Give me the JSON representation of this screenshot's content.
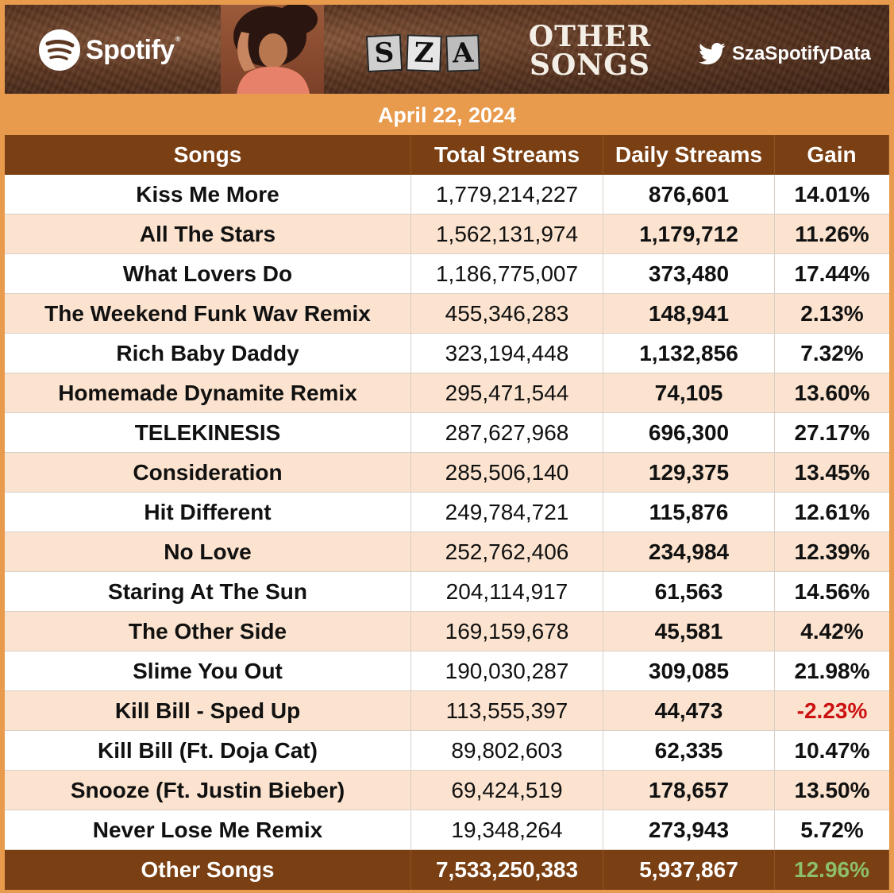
{
  "banner": {
    "spotify_label": "Spotify",
    "artist_logo": [
      "S",
      "Z",
      "A"
    ],
    "title_line1": "OTHER",
    "title_line2": "SONGS",
    "twitter_handle": "SzaSpotifyData"
  },
  "date": "April 22, 2024",
  "columns": [
    "Songs",
    "Total Streams",
    "Daily Streams",
    "Gain"
  ],
  "rows": [
    {
      "song": "Kiss Me More",
      "total": "1,779,214,227",
      "daily": "876,601",
      "gain": "14.01%"
    },
    {
      "song": "All The Stars",
      "total": "1,562,131,974",
      "daily": "1,179,712",
      "gain": "11.26%"
    },
    {
      "song": "What Lovers Do",
      "total": "1,186,775,007",
      "daily": "373,480",
      "gain": "17.44%"
    },
    {
      "song": "The Weekend Funk Wav Remix",
      "total": "455,346,283",
      "daily": "148,941",
      "gain": "2.13%"
    },
    {
      "song": "Rich Baby Daddy",
      "total": "323,194,448",
      "daily": "1,132,856",
      "gain": "7.32%"
    },
    {
      "song": "Homemade Dynamite Remix",
      "total": "295,471,544",
      "daily": "74,105",
      "gain": "13.60%"
    },
    {
      "song": "TELEKINESIS",
      "total": "287,627,968",
      "daily": "696,300",
      "gain": "27.17%"
    },
    {
      "song": "Consideration",
      "total": "285,506,140",
      "daily": "129,375",
      "gain": "13.45%"
    },
    {
      "song": "Hit Different",
      "total": "249,784,721",
      "daily": "115,876",
      "gain": "12.61%"
    },
    {
      "song": "No Love",
      "total": "252,762,406",
      "daily": "234,984",
      "gain": "12.39%"
    },
    {
      "song": "Staring At The Sun",
      "total": "204,114,917",
      "daily": "61,563",
      "gain": "14.56%"
    },
    {
      "song": "The Other Side",
      "total": "169,159,678",
      "daily": "45,581",
      "gain": "4.42%"
    },
    {
      "song": "Slime You Out",
      "total": "190,030,287",
      "daily": "309,085",
      "gain": "21.98%"
    },
    {
      "song": "Kill Bill - Sped Up",
      "total": "113,555,397",
      "daily": "44,473",
      "gain": "-2.23%"
    },
    {
      "song": "Kill Bill (Ft. Doja Cat)",
      "total": "89,802,603",
      "daily": "62,335",
      "gain": "10.47%"
    },
    {
      "song": "Snooze (Ft. Justin Bieber)",
      "total": "69,424,519",
      "daily": "178,657",
      "gain": "13.50%"
    },
    {
      "song": "Never Lose Me Remix",
      "total": "19,348,264",
      "daily": "273,943",
      "gain": "5.72%"
    }
  ],
  "footer": {
    "song": "Other Songs",
    "total": "7,533,250,383",
    "daily": "5,937,867",
    "gain": "12.96%"
  },
  "colors": {
    "frame_orange": "#e89a4d",
    "header_brown": "#7a3f12",
    "row_peach": "#fbe3cf",
    "gain_green": "#69a85a",
    "gain_red": "#cc1111"
  }
}
